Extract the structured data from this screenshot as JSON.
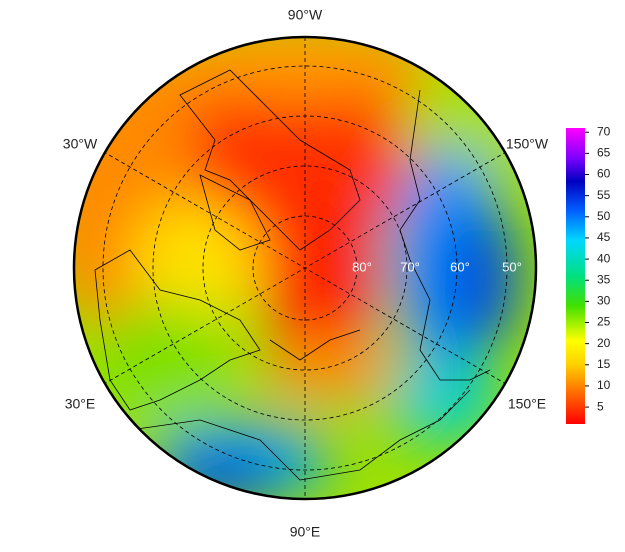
{
  "map": {
    "lon_labels": [
      "90°W",
      "30°W",
      "150°W",
      "30°E",
      "150°E",
      "90°E"
    ],
    "lat_labels": [
      "80°",
      "70°",
      "60°",
      "50°"
    ],
    "colorbar": {
      "lim": [
        1,
        71
      ],
      "ticks": [
        5,
        10,
        15,
        20,
        25,
        30,
        35,
        40,
        45,
        50,
        55,
        60,
        65,
        70
      ]
    }
  }
}
